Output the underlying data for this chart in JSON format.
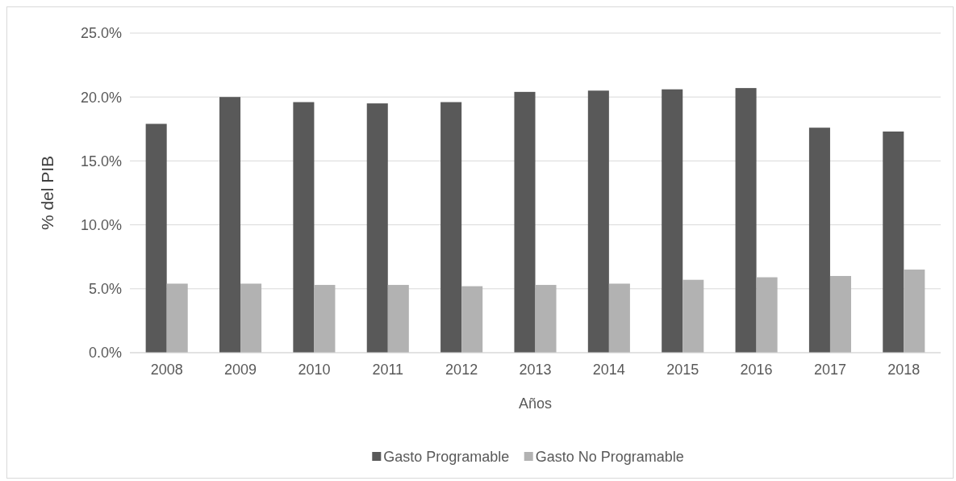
{
  "chart_data": {
    "type": "bar",
    "xlabel": "Años",
    "ylabel": "% del PIB",
    "categories": [
      "2008",
      "2009",
      "2010",
      "2011",
      "2012",
      "2013",
      "2014",
      "2015",
      "2016",
      "2017",
      "2018"
    ],
    "series": [
      {
        "name": "Gasto Programable",
        "color": "#595959",
        "values": [
          17.9,
          20.0,
          19.6,
          19.5,
          19.6,
          20.4,
          20.5,
          20.6,
          20.7,
          17.6,
          17.3
        ]
      },
      {
        "name": "Gasto No Programable",
        "color": "#b2b2b2",
        "values": [
          5.4,
          5.4,
          5.3,
          5.3,
          5.2,
          5.3,
          5.4,
          5.7,
          5.9,
          6.0,
          6.5
        ]
      }
    ],
    "ylim": [
      0,
      25
    ],
    "yticks": [
      {
        "value": 0,
        "label": "0.0%"
      },
      {
        "value": 5,
        "label": "5.0%"
      },
      {
        "value": 10,
        "label": "10.0%"
      },
      {
        "value": 15,
        "label": "15.0%"
      },
      {
        "value": 20,
        "label": "20.0%"
      },
      {
        "value": 25,
        "label": "25.0%"
      }
    ],
    "grid": "y",
    "legend": "bottom"
  }
}
